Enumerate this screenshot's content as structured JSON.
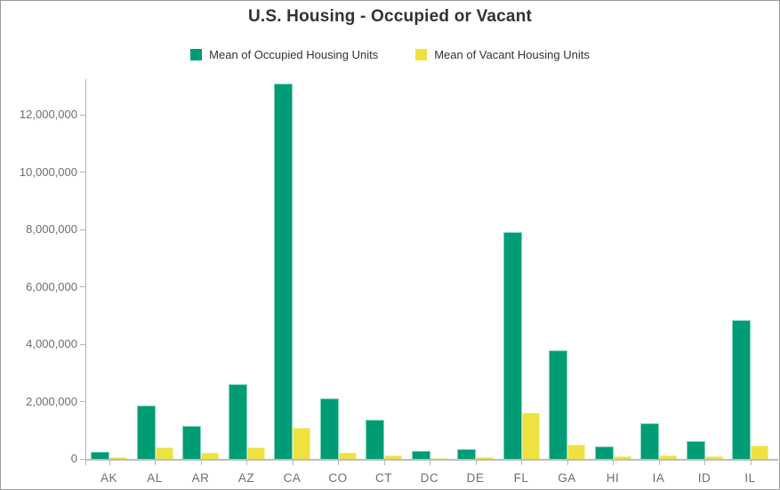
{
  "chart_data": {
    "type": "bar",
    "title": "U.S. Housing - Occupied or Vacant",
    "categories": [
      "AK",
      "AL",
      "AR",
      "AZ",
      "CA",
      "CO",
      "CT",
      "DC",
      "DE",
      "FL",
      "GA",
      "HI",
      "IA",
      "ID",
      "IL"
    ],
    "series": [
      {
        "name": "Mean of Occupied Housing Units",
        "color": "#009C75",
        "border_color": "#7FD4B9",
        "values": [
          250000,
          1850000,
          1150000,
          2600000,
          13100000,
          2100000,
          1360000,
          270000,
          340000,
          7900000,
          3800000,
          450000,
          1250000,
          620000,
          4850000
        ]
      },
      {
        "name": "Mean of Vacant Housing Units",
        "color": "#EDE23F",
        "border_color": "#F5F0A3",
        "values": [
          75000,
          390000,
          210000,
          400000,
          1080000,
          230000,
          120000,
          35000,
          70000,
          1600000,
          490000,
          80000,
          140000,
          90000,
          480000
        ]
      }
    ],
    "xlabel": "",
    "ylabel": "",
    "ylim": [
      0,
      13250000
    ],
    "yticks": [
      0,
      2000000,
      4000000,
      6000000,
      8000000,
      10000000,
      12000000
    ],
    "grid": false,
    "legend_position": "top",
    "colors": {
      "axis": "#B5B5B5",
      "tick_label": "#6E6E6E",
      "title": "#323232",
      "legend_text": "#323232",
      "background": "#FFFFFF",
      "frame_border": "#9B9B9B"
    }
  }
}
